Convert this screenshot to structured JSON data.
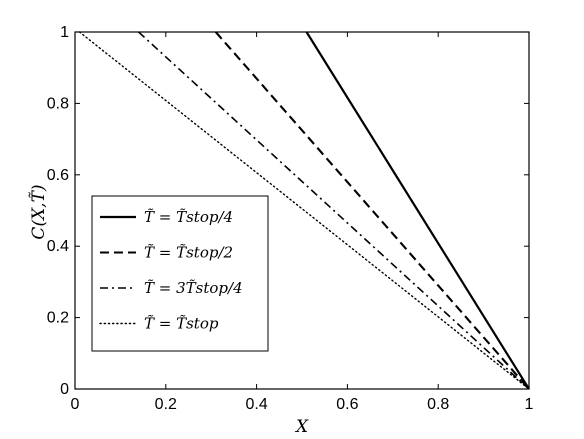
{
  "chart_data": {
    "type": "line",
    "xlabel": "X",
    "ylabel": "C(X,T̃)",
    "xlim": [
      0,
      1
    ],
    "ylim": [
      0,
      1
    ],
    "xticks": [
      "0",
      "0.2",
      "0.4",
      "0.6",
      "0.8",
      "1"
    ],
    "yticks": [
      "0",
      "0.2",
      "0.4",
      "0.6",
      "0.8",
      "1"
    ],
    "grid": false,
    "legend_position": "lower-left",
    "series": [
      {
        "name": "T̃ = T̃stop/4",
        "style": "solid",
        "color": "#000000",
        "x": [
          0.51,
          1.0
        ],
        "y": [
          1.0,
          0.0
        ]
      },
      {
        "name": "T̃ = T̃stop/2",
        "style": "dashed",
        "color": "#000000",
        "x": [
          0.31,
          1.0
        ],
        "y": [
          1.0,
          0.0
        ]
      },
      {
        "name": "T̃ = 3T̃stop/4",
        "style": "dashdot",
        "color": "#000000",
        "x": [
          0.14,
          1.0
        ],
        "y": [
          1.0,
          0.0
        ]
      },
      {
        "name": "T̃ = T̃stop",
        "style": "dotted",
        "color": "#000000",
        "x": [
          0.01,
          1.0
        ],
        "y": [
          1.0,
          0.0
        ]
      }
    ]
  }
}
